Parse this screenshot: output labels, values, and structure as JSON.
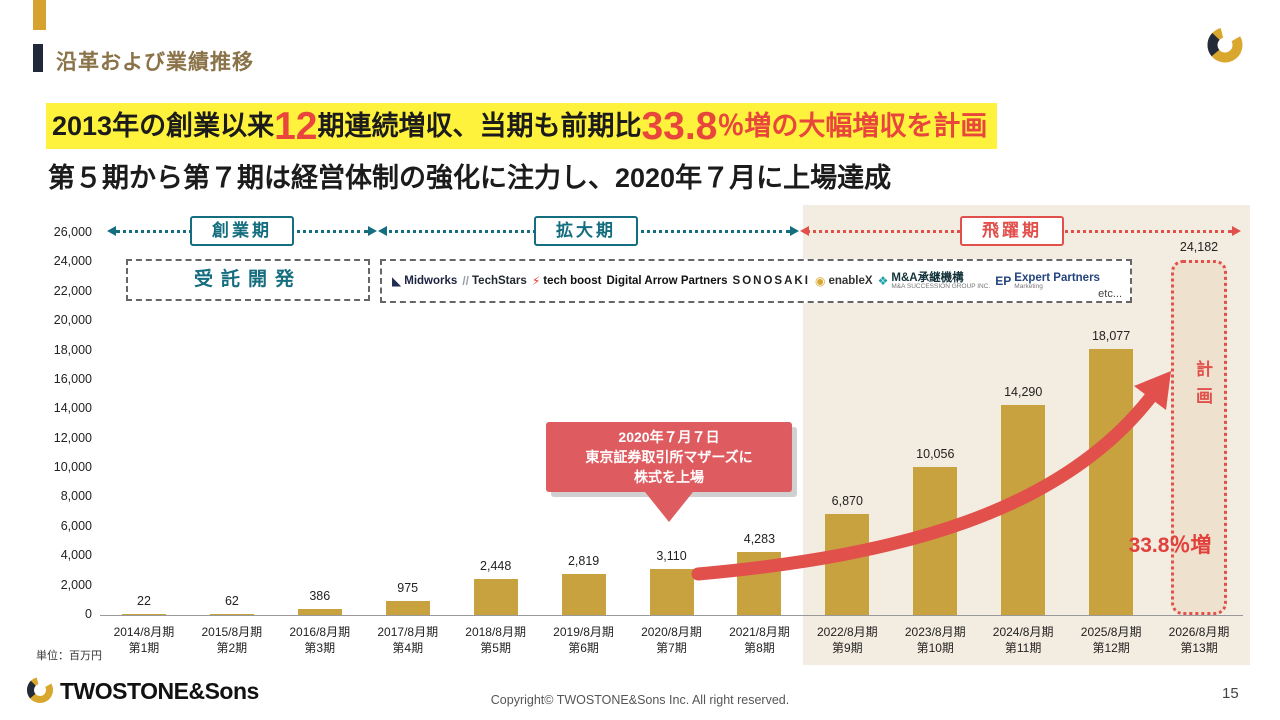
{
  "slide": {
    "title": "沿革および業績推移",
    "page": "15",
    "copyright": "Copyright© TWOSTONE&Sons Inc. All right reserved.",
    "brand": "TWOSTONE&Sons"
  },
  "headline": {
    "l1a": "2013年の創業以来",
    "l1b": "12",
    "l1c": "期連続増収、当期も前期比",
    "l1d": "33.8",
    "l1e": "％増の大幅増収を計画",
    "line2": "第５期から第７期は経営体制の強化に注力し、2020年７月に上場達成"
  },
  "phases": {
    "founding": "創業期",
    "expansion": "拡大期",
    "leap": "飛躍期"
  },
  "boxes": {
    "dev": "受託開発",
    "etc": "etc..."
  },
  "logos": {
    "items": [
      {
        "id": "midworks",
        "icon": "◣",
        "icon_color": "#212b52",
        "name": "Midworks",
        "color": "#1c2340"
      },
      {
        "id": "techstars",
        "icon": "//",
        "icon_color": "#9aa0a8",
        "name": "TechStars",
        "color": "#23272e"
      },
      {
        "id": "tech-boost",
        "icon": "⚡",
        "icon_color": "#e83a2e",
        "name": "tech boost",
        "color": "#101010"
      },
      {
        "id": "digital-arrow-partners",
        "name": "Digital Arrow Partners",
        "color": "#111111"
      },
      {
        "id": "sonosaki",
        "name": "SONOSAKI",
        "color": "#222222",
        "spacing": "2px"
      },
      {
        "id": "enablex",
        "icon": "◉",
        "icon_color": "#D9A62E",
        "name": "enableX",
        "color": "#333333"
      },
      {
        "id": "ma-shokei",
        "icon": "❖",
        "icon_color": "#1AA0A8",
        "name": "M&A承継機構",
        "color": "#13323a",
        "sub": "M&A SUCCESSION GROUP INC."
      },
      {
        "id": "expert-partners",
        "icon": "EP",
        "icon_color": "#24457E",
        "name": "Expert Partners",
        "color": "#24457E",
        "sub": "Marketing"
      }
    ]
  },
  "callout": {
    "line1": "2020年７月７日",
    "line2": "東京証券取引所マザーズに",
    "line3": "株式を上場"
  },
  "annotations": {
    "plan": "計画",
    "growth": "33.8％増"
  },
  "chart_data": {
    "type": "bar",
    "unit": "単位：百万円",
    "bar_color": "#C7A23F",
    "plan_color": "#E2504C",
    "ylim": [
      0,
      26000
    ],
    "yticks": [
      0,
      2000,
      4000,
      6000,
      8000,
      10000,
      12000,
      14000,
      16000,
      18000,
      20000,
      22000,
      24000,
      26000
    ],
    "categories": [
      {
        "year": "2014/8月期",
        "term": "第1期"
      },
      {
        "year": "2015/8月期",
        "term": "第2期"
      },
      {
        "year": "2016/8月期",
        "term": "第3期"
      },
      {
        "year": "2017/8月期",
        "term": "第4期"
      },
      {
        "year": "2018/8月期",
        "term": "第5期"
      },
      {
        "year": "2019/8月期",
        "term": "第6期"
      },
      {
        "year": "2020/8月期",
        "term": "第7期"
      },
      {
        "year": "2021/8月期",
        "term": "第8期"
      },
      {
        "year": "2022/8月期",
        "term": "第9期"
      },
      {
        "year": "2023/8月期",
        "term": "第10期"
      },
      {
        "year": "2024/8月期",
        "term": "第11期"
      },
      {
        "year": "2025/8月期",
        "term": "第12期"
      },
      {
        "year": "2026/8月期",
        "term": "第13期",
        "plan": true
      }
    ],
    "values": [
      22,
      62,
      386,
      975,
      2448,
      2819,
      3110,
      4283,
      6870,
      10056,
      14290,
      18077,
      24182
    ]
  }
}
